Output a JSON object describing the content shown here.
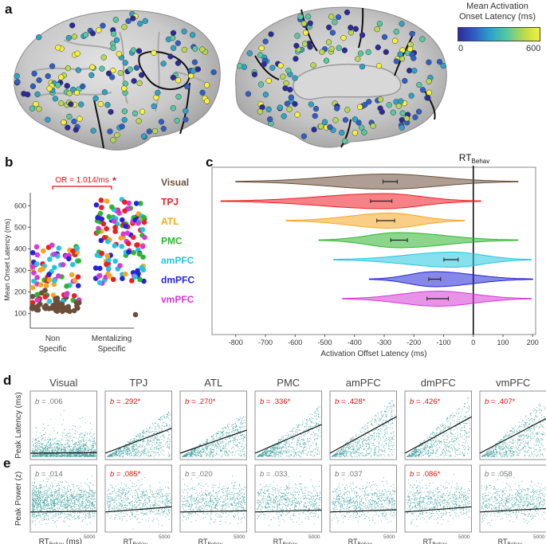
{
  "panel_labels": {
    "a": "a",
    "b": "b",
    "c": "c",
    "d": "d",
    "e": "e"
  },
  "colorbar": {
    "title_line1": "Mean Activation",
    "title_line2": "Onset Latency (ms)",
    "min_label": "0",
    "max_label": "600"
  },
  "colors": {
    "Visual": "#6b4f3a",
    "TPJ": "#ee1c25",
    "ATL": "#f6a623",
    "PMC": "#2db52d",
    "amPFC": "#22c6e0",
    "dmPFC": "#2424d6",
    "vmPFC": "#d639d6",
    "teal": "#1a8c8c",
    "sig_red": "#dd1111"
  },
  "panel_b": {
    "ylabel": "Mean Onset Latency (ms)",
    "yticks": [
      100,
      200,
      300,
      400,
      500,
      600
    ],
    "group1_line1": "Non",
    "group1_line2": "Specific",
    "group2_line1": "Mentalizing",
    "group2_line2": "Specific",
    "annotation": "OR = 1.014/ms",
    "star": "*"
  },
  "chart_data": [
    {
      "type": "violin",
      "id": "panel_c",
      "regions": [
        "Visual",
        "TPJ",
        "ATL",
        "PMC",
        "amPFC",
        "dmPFC",
        "vmPFC"
      ],
      "ranges": [
        [
          -800,
          150
        ],
        [
          -850,
          25
        ],
        [
          -630,
          -30
        ],
        [
          -520,
          150
        ],
        [
          -470,
          195
        ],
        [
          -350,
          200
        ],
        [
          -440,
          195
        ]
      ],
      "modes": [
        -290,
        -300,
        -280,
        -250,
        -70,
        -130,
        -120
      ],
      "means": [
        -280,
        -310,
        -295,
        -250,
        -75,
        -130,
        -120
      ],
      "sems": [
        12,
        18,
        15,
        14,
        12,
        10,
        18
      ],
      "xlabel": "Activation Offset Latency (ms)",
      "xlim": [
        -880,
        210
      ],
      "xticks": [
        -800,
        -700,
        -600,
        -500,
        -400,
        -300,
        -200,
        -100,
        0,
        100,
        200
      ],
      "rt_label": "RT",
      "rt_sub": "Behav",
      "rt_x": 0
    },
    {
      "type": "scatter",
      "id": "panel_d",
      "ylabel": "Peak Latency (ms)",
      "regions": [
        "Visual",
        "TPJ",
        "ATL",
        "PMC",
        "amPFC",
        "dmPFC",
        "vmPFC"
      ],
      "b_values": [
        ".006",
        ".292",
        ".270",
        ".336",
        ".428",
        ".426",
        ".407"
      ],
      "significant": [
        false,
        true,
        true,
        true,
        true,
        true,
        true
      ],
      "xlim": [
        0,
        5000
      ],
      "ylim": [
        0,
        5000
      ]
    },
    {
      "type": "scatter",
      "id": "panel_e",
      "ylabel": "Peak Power (z)",
      "b_values": [
        ".014",
        ".085",
        ".020",
        ".033",
        ".037",
        ".086",
        ".058"
      ],
      "significant": [
        false,
        true,
        false,
        false,
        false,
        true,
        false
      ],
      "x_tick_label": "5000",
      "xlabel_main": "RT",
      "xlabel_sub": "Behav",
      "xlabel_unit": "(ms)"
    }
  ]
}
